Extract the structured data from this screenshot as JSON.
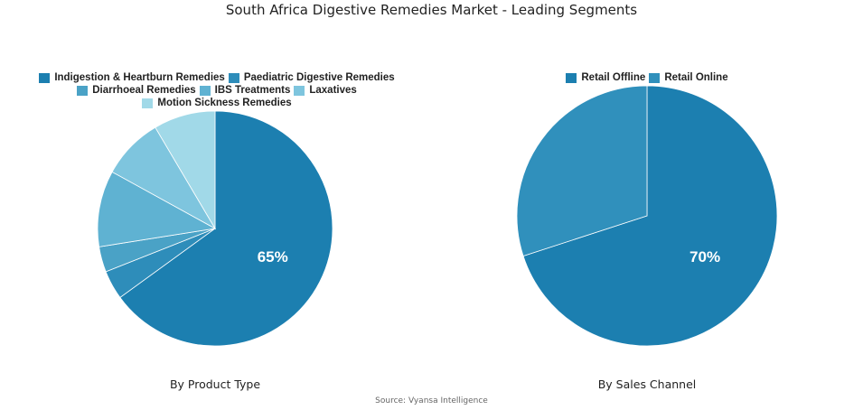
{
  "title": "South Africa Digestive Remedies Market - Leading Segments",
  "source": "Source: Vyansa Intelligence",
  "chart_data": [
    {
      "type": "pie",
      "subtitle": "By Product Type",
      "categories": [
        "Indigestion & Heartburn Remedies",
        "Paediatric Digestive Remedies",
        "Diarrhoeal Remedies",
        "IBS Treatments",
        "Laxatives",
        "Motion Sickness Remedies"
      ],
      "values": [
        65,
        4,
        3.5,
        10.5,
        8.5,
        8.5
      ],
      "colors": [
        "#1c7fb0",
        "#2e8dba",
        "#4aa2c6",
        "#5fb2d2",
        "#7ec5de",
        "#a1d9e8"
      ],
      "data_labels": [
        "65%",
        "",
        "",
        "",
        "",
        ""
      ],
      "legend_position": "top"
    },
    {
      "type": "pie",
      "subtitle": "By Sales Channel",
      "categories": [
        "Retail Offline",
        "Retail Online"
      ],
      "values": [
        70,
        30
      ],
      "colors": [
        "#1c7fb0",
        "#3090bc"
      ],
      "data_labels": [
        "70%",
        ""
      ],
      "legend_position": "top"
    }
  ]
}
